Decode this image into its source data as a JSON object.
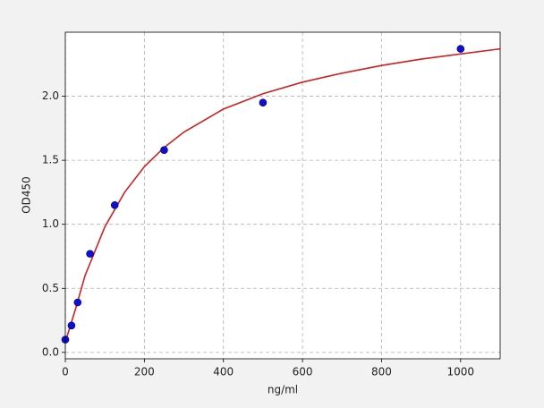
{
  "chart_data": {
    "type": "scatter",
    "x_label": "ng/ml",
    "y_label": "OD450",
    "xlim": [
      0,
      1100
    ],
    "ylim": [
      -0.05,
      2.5
    ],
    "xticks": [
      0,
      200,
      400,
      600,
      800,
      1000
    ],
    "yticks": [
      {
        "value": 0,
        "label": "0.0"
      },
      0.5,
      {
        "value": 1,
        "label": "1.0"
      },
      1.5,
      {
        "value": 2,
        "label": "2.0"
      }
    ],
    "grid": true,
    "series": [
      {
        "type": "scatter",
        "color": "#1010d0",
        "x": [
          0,
          15.6,
          31.25,
          62.5,
          125,
          250,
          500,
          1000
        ],
        "values": [
          0.1,
          0.21,
          0.39,
          0.77,
          1.15,
          1.58,
          1.95,
          2.37
        ]
      },
      {
        "type": "line",
        "color": "#cc2222",
        "x": [
          0,
          25,
          50,
          100,
          150,
          200,
          250,
          300,
          400,
          500,
          600,
          700,
          800,
          900,
          1000,
          1100
        ],
        "values": [
          0.08,
          0.33,
          0.6,
          0.98,
          1.25,
          1.45,
          1.6,
          1.72,
          1.9,
          2.02,
          2.11,
          2.18,
          2.24,
          2.29,
          2.33,
          2.37
        ]
      }
    ]
  }
}
